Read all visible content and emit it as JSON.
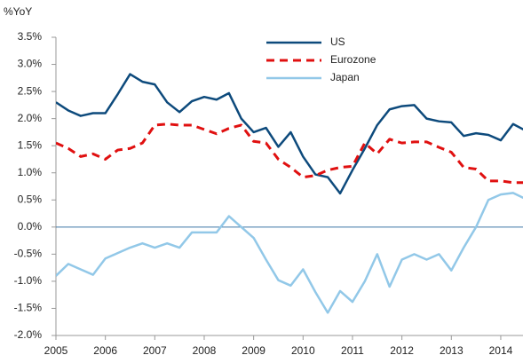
{
  "chart_data": {
    "type": "line",
    "y_label": "%YoY",
    "x": [
      2005,
      2005.25,
      2005.5,
      2005.75,
      2006,
      2006.25,
      2006.5,
      2006.75,
      2007,
      2007.25,
      2007.5,
      2007.75,
      2008,
      2008.25,
      2008.5,
      2008.75,
      2009,
      2009.25,
      2009.5,
      2009.75,
      2010,
      2010.25,
      2010.5,
      2010.75,
      2011,
      2011.25,
      2011.5,
      2011.75,
      2012,
      2012.25,
      2012.5,
      2012.75,
      2013,
      2013.25,
      2013.5,
      2013.75,
      2014,
      2014.25,
      2014.5
    ],
    "series": [
      {
        "name": "US",
        "color": "#0d4a7c",
        "dashed": false,
        "values": [
          2.3,
          2.15,
          2.05,
          2.1,
          2.1,
          2.45,
          2.82,
          2.68,
          2.63,
          2.3,
          2.12,
          2.32,
          2.4,
          2.35,
          2.47,
          2.0,
          1.75,
          1.83,
          1.48,
          1.75,
          1.3,
          0.97,
          0.92,
          0.62,
          1.05,
          1.45,
          1.88,
          2.17,
          2.23,
          2.25,
          2.0,
          1.95,
          1.93,
          1.68,
          1.73,
          1.7,
          1.6,
          1.9,
          1.78
        ]
      },
      {
        "name": "Eurozone",
        "color": "#e01010",
        "dashed": true,
        "values": [
          1.55,
          1.45,
          1.3,
          1.35,
          1.25,
          1.42,
          1.45,
          1.55,
          1.88,
          1.9,
          1.88,
          1.88,
          1.8,
          1.72,
          1.82,
          1.88,
          1.58,
          1.55,
          1.25,
          1.1,
          0.92,
          0.95,
          1.05,
          1.1,
          1.12,
          1.55,
          1.35,
          1.62,
          1.55,
          1.57,
          1.57,
          1.47,
          1.38,
          1.1,
          1.07,
          0.85,
          0.85,
          0.82,
          0.82
        ]
      },
      {
        "name": "Japan",
        "color": "#92c8e8",
        "dashed": false,
        "values": [
          -0.9,
          -0.68,
          -0.78,
          -0.88,
          -0.58,
          -0.48,
          -0.38,
          -0.3,
          -0.38,
          -0.3,
          -0.38,
          -0.1,
          -0.1,
          -0.1,
          0.2,
          0.0,
          -0.2,
          -0.6,
          -0.98,
          -1.08,
          -0.78,
          -1.2,
          -1.58,
          -1.18,
          -1.38,
          -1.0,
          -0.5,
          -1.1,
          -0.6,
          -0.5,
          -0.6,
          -0.5,
          -0.8,
          -0.38,
          0.0,
          0.5,
          0.6,
          0.63,
          0.52
        ]
      }
    ],
    "xlim": [
      2005,
      2014.45
    ],
    "xticks": [
      2005,
      2006,
      2007,
      2008,
      2009,
      2010,
      2011,
      2012,
      2013,
      2014
    ],
    "ylim": [
      -2.0,
      3.5
    ],
    "yticks": [
      {
        "value": 3.5,
        "label": "3.5%"
      },
      {
        "value": 3.0,
        "label": "3.0%"
      },
      {
        "value": 2.5,
        "label": "2.5%"
      },
      {
        "value": 2.0,
        "label": "2.0%"
      },
      {
        "value": 1.5,
        "label": "1.5%"
      },
      {
        "value": 1.0,
        "label": "1.0%"
      },
      {
        "value": 0.5,
        "label": "0.5%"
      },
      {
        "value": 0.0,
        "label": "0.0%"
      },
      {
        "value": -0.5,
        "label": "-0.5%"
      },
      {
        "value": -1.0,
        "label": "-1.0%"
      },
      {
        "value": -1.5,
        "label": "-1.5%"
      },
      {
        "value": -2.0,
        "label": "-2.0%"
      }
    ],
    "grid": false,
    "legend": "top"
  }
}
